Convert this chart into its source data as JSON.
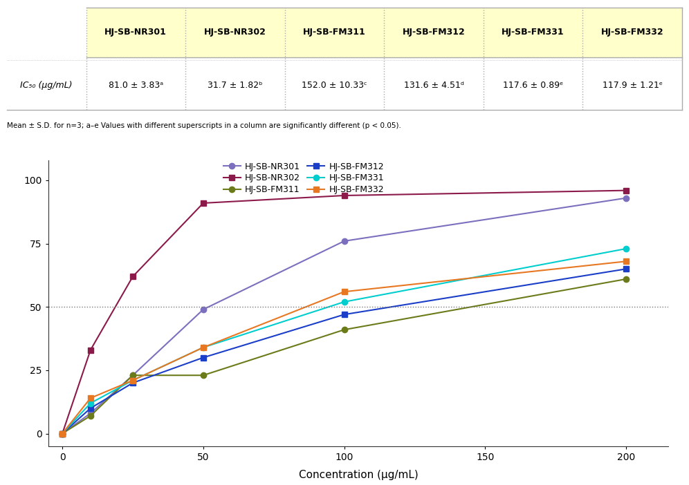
{
  "table": {
    "headers": [
      "HJ-SB-NR301",
      "HJ-SB-NR302",
      "HJ-SB-FM311",
      "HJ-SB-FM312",
      "HJ-SB-FM331",
      "HJ-SB-FM332"
    ],
    "row_label": "IC₅₀ (μg/mL)",
    "values": [
      "81.0 ± 3.83ᵃ",
      "31.7 ± 1.82ᵇ",
      "152.0 ± 10.33ᶜ",
      "131.6 ± 4.51ᵈ",
      "117.6 ± 0.89ᵉ",
      "117.9 ± 1.21ᵉ"
    ],
    "footnote": "Mean ± S.D. for n=3; a–e Values with different superscripts in a column are significantly different (p < 0.05).",
    "header_bg": "#FFFFCC",
    "border_color": "#AAAAAA"
  },
  "series": [
    {
      "label": "HJ-SB-NR301",
      "color": "#7B6FBE",
      "marker": "o",
      "x": [
        0,
        10,
        25,
        50,
        100,
        200
      ],
      "y": [
        0,
        8,
        23,
        49,
        76,
        93
      ]
    },
    {
      "label": "HJ-SB-NR302",
      "color": "#8B1A4A",
      "marker": "s",
      "x": [
        0,
        10,
        25,
        50,
        100,
        200
      ],
      "y": [
        0,
        33,
        62,
        91,
        94,
        96
      ]
    },
    {
      "label": "HJ-SB-FM311",
      "color": "#6B7B1A",
      "marker": "o",
      "x": [
        0,
        10,
        25,
        50,
        100,
        200
      ],
      "y": [
        0,
        7,
        23,
        23,
        41,
        61
      ]
    },
    {
      "label": "HJ-SB-FM312",
      "color": "#1A3EC8",
      "marker": "s",
      "x": [
        0,
        10,
        25,
        50,
        100,
        200
      ],
      "y": [
        0,
        10,
        20,
        30,
        47,
        65
      ]
    },
    {
      "label": "HJ-SB-FM331",
      "color": "#00CDCD",
      "marker": "o",
      "x": [
        0,
        10,
        25,
        50,
        100,
        200
      ],
      "y": [
        0,
        12,
        21,
        34,
        52,
        73
      ]
    },
    {
      "label": "HJ-SB-FM332",
      "color": "#E87722",
      "marker": "s",
      "x": [
        0,
        10,
        25,
        50,
        100,
        200
      ],
      "y": [
        0,
        14,
        21,
        34,
        56,
        68
      ]
    }
  ],
  "xlabel": "Concentration (μg/mL)",
  "xlim": [
    -5,
    215
  ],
  "ylim": [
    -5,
    108
  ],
  "yticks": [
    0,
    25,
    50,
    75,
    100
  ],
  "xticks": [
    0,
    50,
    100,
    150,
    200
  ],
  "hline_y": 50,
  "hline_color": "#777777",
  "background_color": "#FFFFFF",
  "legend_order": [
    0,
    1,
    2,
    3,
    4,
    5
  ]
}
